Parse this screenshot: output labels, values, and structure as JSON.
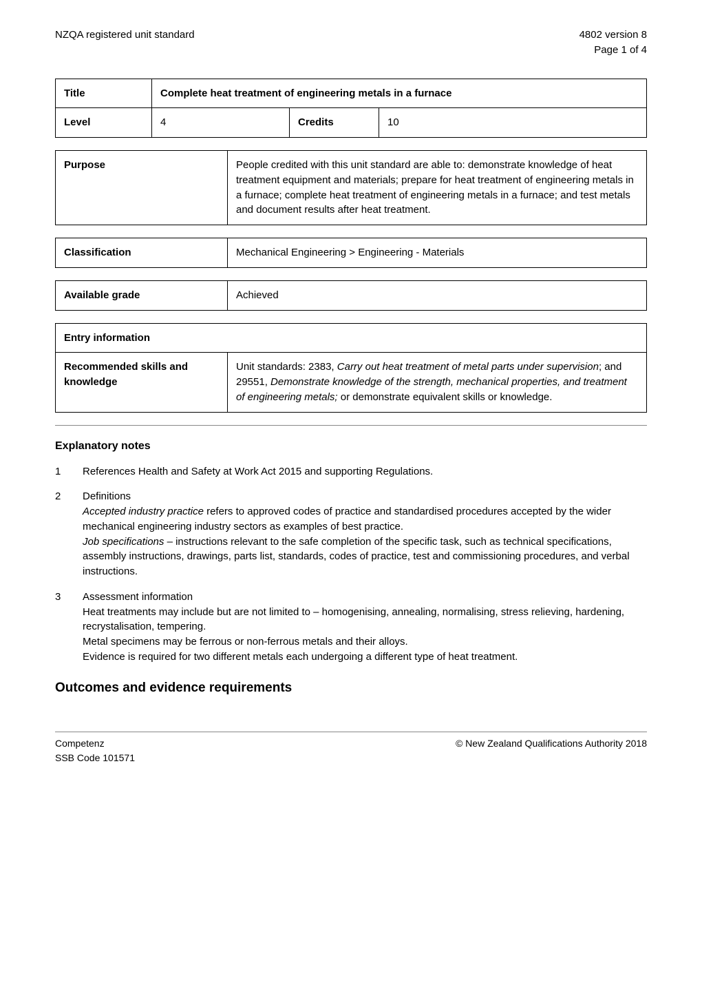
{
  "header": {
    "left": "NZQA registered unit standard",
    "right_line1": "4802 version 8",
    "right_line2": "Page 1 of 4"
  },
  "title_table": {
    "title_label": "Title",
    "title_value": "Complete heat treatment of engineering metals in a furnace",
    "level_label": "Level",
    "level_value": "4",
    "credits_label": "Credits",
    "credits_value": "10"
  },
  "purpose": {
    "label": "Purpose",
    "value": "People credited with this unit standard are able to: demonstrate knowledge of heat treatment equipment and materials; prepare for heat treatment of engineering metals in a furnace; complete heat treatment of engineering metals in a furnace; and test metals and document results after heat treatment."
  },
  "classification": {
    "label": "Classification",
    "value": "Mechanical Engineering > Engineering - Materials"
  },
  "available_grade": {
    "label": "Available grade",
    "value": "Achieved"
  },
  "entry_info": {
    "header": "Entry information",
    "skills_label": "Recommended skills and knowledge",
    "skills_text_1": "Unit standards: 2383, ",
    "skills_italic_1": "Carry out heat treatment of metal parts under supervision",
    "skills_text_2": "; and 29551, ",
    "skills_italic_2": "Demonstrate knowledge of the strength, mechanical properties, and treatment of engineering metals;",
    "skills_text_3": " or demonstrate equivalent skills or knowledge."
  },
  "explanatory": {
    "heading": "Explanatory notes",
    "items": [
      {
        "num": "1",
        "plain": "References Health and Safety at Work Act 2015 and supporting Regulations."
      },
      {
        "num": "2",
        "heading": "Definitions",
        "para1_italic": "Accepted industry practice",
        "para1_rest": " refers to approved codes of practice and standardised procedures accepted by the wider mechanical engineering industry sectors as examples of best practice.",
        "para2_italic": "Job specifications",
        "para2_rest": " – instructions relevant to the safe completion of the specific task, such as technical specifications, assembly instructions, drawings, parts list, standards, codes of practice, test and commissioning procedures, and verbal instructions."
      },
      {
        "num": "3",
        "heading": "Assessment information",
        "lines": "Heat treatments may include but are not limited to – homogenising, annealing, normalising, stress relieving, hardening, recrystalisation, tempering.\nMetal specimens may be ferrous or non-ferrous metals and their alloys.\nEvidence is required for two different metals each undergoing a different type of heat treatment."
      }
    ]
  },
  "outcomes_heading": "Outcomes and evidence requirements",
  "footer": {
    "left_line1": "Competenz",
    "left_line2": "SSB Code 101571",
    "right": "© New Zealand Qualifications Authority 2018"
  }
}
